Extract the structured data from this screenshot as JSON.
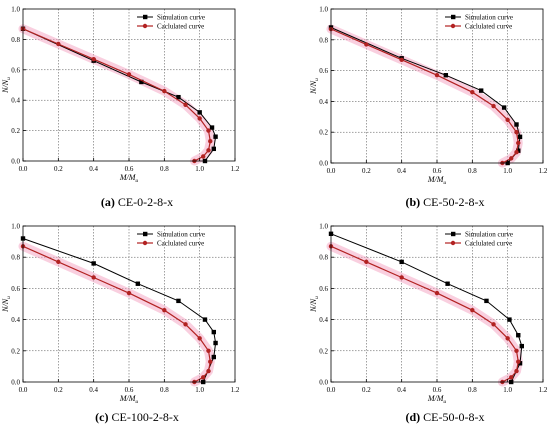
{
  "colors": {
    "simulation": "#000000",
    "calculated": "#b22222",
    "pink_band": "#f4a7c4",
    "grid": "#444444"
  },
  "chart_data": [
    {
      "type": "line",
      "panel_tag": "(a)",
      "caption": "CE-0-2-8-x",
      "xlabel": "M/M",
      "xlabel_sub": "u",
      "ylabel": "N/N",
      "ylabel_sub": "u",
      "xlim": [
        0,
        1.2
      ],
      "ylim": [
        0,
        1.0
      ],
      "xticks": [
        "0.0",
        "0.2",
        "0.4",
        "0.6",
        "0.8",
        "1.0",
        "1.2"
      ],
      "yticks": [
        "0.0",
        "0.2",
        "0.4",
        "0.6",
        "0.8",
        "1.0"
      ],
      "grid": true,
      "legend_position": "top-right",
      "series": [
        {
          "name": "Simulation curve",
          "marker": "square",
          "x": [
            0,
            0.4,
            0.67,
            0.88,
            1.0,
            1.07,
            1.09,
            1.08,
            1.03
          ],
          "y": [
            0.87,
            0.66,
            0.52,
            0.42,
            0.32,
            0.22,
            0.16,
            0.08,
            0.0
          ]
        },
        {
          "name": "Caclulated curve",
          "marker": "circle",
          "x": [
            0,
            0.2,
            0.4,
            0.6,
            0.8,
            0.92,
            1.0,
            1.05,
            1.06,
            1.05,
            1.02,
            0.97
          ],
          "y": [
            0.87,
            0.77,
            0.67,
            0.57,
            0.46,
            0.37,
            0.28,
            0.2,
            0.13,
            0.07,
            0.03,
            0.0
          ]
        }
      ]
    },
    {
      "type": "line",
      "panel_tag": "(b)",
      "caption": "CE-50-2-8-x",
      "xlabel": "M/M",
      "xlabel_sub": "u",
      "ylabel": "N/N",
      "ylabel_sub": "u",
      "xlim": [
        0,
        1.2
      ],
      "ylim": [
        0,
        1.0
      ],
      "xticks": [
        "0.0",
        "0.2",
        "0.4",
        "0.6",
        "0.8",
        "1.0",
        "1.2"
      ],
      "yticks": [
        "0.0",
        "0.2",
        "0.4",
        "0.6",
        "0.8",
        "1.0"
      ],
      "grid": true,
      "legend_position": "top-right",
      "series": [
        {
          "name": "Simulation curve",
          "marker": "square",
          "x": [
            0,
            0.4,
            0.65,
            0.85,
            0.98,
            1.05,
            1.07,
            1.06,
            1.0
          ],
          "y": [
            0.88,
            0.68,
            0.57,
            0.47,
            0.36,
            0.25,
            0.17,
            0.08,
            0.0
          ]
        },
        {
          "name": "Caclulated curve",
          "marker": "circle",
          "x": [
            0,
            0.2,
            0.4,
            0.6,
            0.8,
            0.92,
            1.0,
            1.05,
            1.06,
            1.05,
            1.02,
            0.97
          ],
          "y": [
            0.87,
            0.77,
            0.67,
            0.57,
            0.46,
            0.37,
            0.28,
            0.2,
            0.13,
            0.07,
            0.03,
            0.0
          ]
        }
      ]
    },
    {
      "type": "line",
      "panel_tag": "(c)",
      "caption": "CE-100-2-8-x",
      "xlabel": "M/M",
      "xlabel_sub": "u",
      "ylabel": "N/N",
      "ylabel_sub": "u",
      "xlim": [
        0,
        1.2
      ],
      "ylim": [
        0,
        1.0
      ],
      "xticks": [
        "0.0",
        "0.2",
        "0.4",
        "0.6",
        "0.8",
        "1.0",
        "1.2"
      ],
      "yticks": [
        "0.0",
        "0.2",
        "0.4",
        "0.6",
        "0.8",
        "1.0"
      ],
      "grid": true,
      "legend_position": "top-right",
      "series": [
        {
          "name": "Simulation curve",
          "marker": "square",
          "x": [
            0,
            0.4,
            0.65,
            0.88,
            1.03,
            1.08,
            1.09,
            1.08,
            1.02
          ],
          "y": [
            0.92,
            0.76,
            0.63,
            0.52,
            0.4,
            0.32,
            0.25,
            0.16,
            0.0
          ]
        },
        {
          "name": "Caclulated curve",
          "marker": "circle",
          "x": [
            0,
            0.2,
            0.4,
            0.6,
            0.8,
            0.92,
            1.0,
            1.05,
            1.06,
            1.05,
            1.02,
            0.97
          ],
          "y": [
            0.87,
            0.77,
            0.67,
            0.57,
            0.46,
            0.37,
            0.28,
            0.2,
            0.13,
            0.07,
            0.03,
            0.0
          ]
        }
      ]
    },
    {
      "type": "line",
      "panel_tag": "(d)",
      "caption": "CE-50-0-8-x",
      "xlabel": "M/M",
      "xlabel_sub": "u",
      "ylabel": "N/N",
      "ylabel_sub": "u",
      "xlim": [
        0,
        1.2
      ],
      "ylim": [
        0,
        1.0
      ],
      "xticks": [
        "0.0",
        "0.2",
        "0.4",
        "0.6",
        "0.8",
        "1.0",
        "1.2"
      ],
      "yticks": [
        "0.0",
        "0.2",
        "0.4",
        "0.6",
        "0.8",
        "1.0"
      ],
      "grid": true,
      "legend_position": "top-right",
      "series": [
        {
          "name": "Simulation curve",
          "marker": "square",
          "x": [
            0,
            0.4,
            0.66,
            0.88,
            1.01,
            1.06,
            1.08,
            1.07,
            1.02
          ],
          "y": [
            0.95,
            0.77,
            0.63,
            0.52,
            0.4,
            0.3,
            0.23,
            0.12,
            0.0
          ]
        },
        {
          "name": "Caclulated curve",
          "marker": "circle",
          "x": [
            0,
            0.2,
            0.4,
            0.6,
            0.8,
            0.92,
            1.0,
            1.05,
            1.06,
            1.05,
            1.02,
            0.97
          ],
          "y": [
            0.87,
            0.77,
            0.67,
            0.57,
            0.46,
            0.37,
            0.28,
            0.2,
            0.13,
            0.07,
            0.03,
            0.0
          ]
        }
      ]
    }
  ]
}
